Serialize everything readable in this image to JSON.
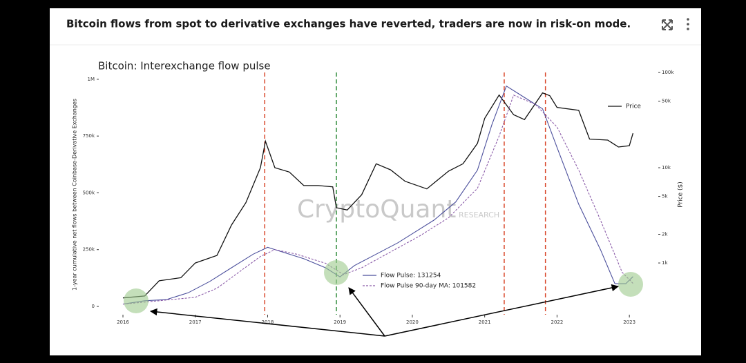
{
  "header": {
    "title": "Bitcoin flows from spot to derivative exchanges have reverted, traders are now in risk-on mode."
  },
  "chart_data": {
    "type": "line",
    "title": "Bitcoin: Interexchange flow pulse",
    "ylabel": "1-year cumulative net flows between Coinbase-Derivative Exchanges",
    "y2label": "Price ($)",
    "watermark": "CryptoQuant",
    "watermark_sub": "RESEARCH",
    "xlim": [
      2015.876,
      2023.18
    ],
    "xticks": [
      2016,
      2017,
      2018,
      2019,
      2020,
      2021,
      2022,
      2023
    ],
    "ylim": [
      0,
      1030000
    ],
    "yticks": [
      {
        "value": 0,
        "label": "0"
      },
      {
        "value": 250000,
        "label": "250k"
      },
      {
        "value": 500000,
        "label": "500k"
      },
      {
        "value": 750000,
        "label": "750k"
      },
      {
        "value": 1000000,
        "label": "1M"
      }
    ],
    "y2lim": [
      350,
      100000
    ],
    "y2log": true,
    "y2ticks": [
      {
        "value": 1000,
        "label": "1k"
      },
      {
        "value": 2000,
        "label": "2k"
      },
      {
        "value": 5000,
        "label": "5k"
      },
      {
        "value": 10000,
        "label": "10k"
      },
      {
        "value": 50000,
        "label": "50k"
      },
      {
        "value": 100000,
        "label": "100k"
      }
    ],
    "series": [
      {
        "name": "Price",
        "color": "#111111",
        "axis": "y2",
        "linestyle": "solid",
        "x": [
          2016.0,
          2016.3,
          2016.5,
          2016.8,
          2017.0,
          2017.3,
          2017.5,
          2017.7,
          2017.9,
          2017.97,
          2018.1,
          2018.3,
          2018.5,
          2018.7,
          2018.9,
          2018.95,
          2019.1,
          2019.3,
          2019.5,
          2019.7,
          2019.9,
          2020.2,
          2020.5,
          2020.7,
          2020.9,
          2021.0,
          2021.2,
          2021.4,
          2021.55,
          2021.8,
          2021.9,
          2022.0,
          2022.3,
          2022.45,
          2022.7,
          2022.85,
          2023.0,
          2023.05
        ],
        "values": [
          430,
          450,
          650,
          700,
          1000,
          1200,
          2500,
          4300,
          10000,
          19000,
          10000,
          9000,
          6500,
          6500,
          6300,
          3800,
          3600,
          5200,
          11000,
          9500,
          7200,
          6000,
          9200,
          11000,
          18000,
          33000,
          58000,
          36000,
          32000,
          61000,
          57000,
          43000,
          40000,
          20000,
          19500,
          16500,
          17000,
          23000
        ]
      },
      {
        "name": "Flow Pulse: 131254",
        "color": "#4b4f9c",
        "linestyle": "solid",
        "x": [
          2016.0,
          2016.3,
          2016.6,
          2016.9,
          2017.2,
          2017.5,
          2017.8,
          2018.0,
          2018.2,
          2018.5,
          2018.8,
          2019.0,
          2019.2,
          2019.5,
          2019.8,
          2020.0,
          2020.3,
          2020.6,
          2020.9,
          2021.1,
          2021.3,
          2021.5,
          2021.8,
          2022.0,
          2022.3,
          2022.6,
          2022.8,
          2022.95,
          2023.05
        ],
        "values": [
          10000,
          25000,
          30000,
          60000,
          110000,
          170000,
          230000,
          260000,
          240000,
          210000,
          170000,
          130000,
          180000,
          230000,
          280000,
          320000,
          380000,
          460000,
          600000,
          800000,
          970000,
          930000,
          870000,
          700000,
          450000,
          250000,
          100000,
          100000,
          131254
        ]
      },
      {
        "name": "Flow Pulse 90-day MA: 101582",
        "color": "#8a5aa8",
        "linestyle": "dashed",
        "x": [
          2016.0,
          2016.5,
          2017.0,
          2017.3,
          2017.6,
          2017.9,
          2018.1,
          2018.4,
          2018.8,
          2019.05,
          2019.3,
          2019.7,
          2020.1,
          2020.5,
          2020.9,
          2021.2,
          2021.4,
          2021.7,
          2022.0,
          2022.3,
          2022.6,
          2022.9,
          2023.05
        ],
        "values": [
          10000,
          25000,
          40000,
          80000,
          150000,
          220000,
          250000,
          230000,
          190000,
          140000,
          170000,
          240000,
          310000,
          390000,
          520000,
          750000,
          930000,
          890000,
          790000,
          600000,
          380000,
          150000,
          101582
        ]
      }
    ],
    "vlines": [
      {
        "x": 2017.96,
        "color": "#d9472b"
      },
      {
        "x": 2018.95,
        "color": "#2e8b3a"
      },
      {
        "x": 2021.27,
        "color": "#d9472b"
      },
      {
        "x": 2021.84,
        "color": "#d9472b"
      }
    ]
  }
}
